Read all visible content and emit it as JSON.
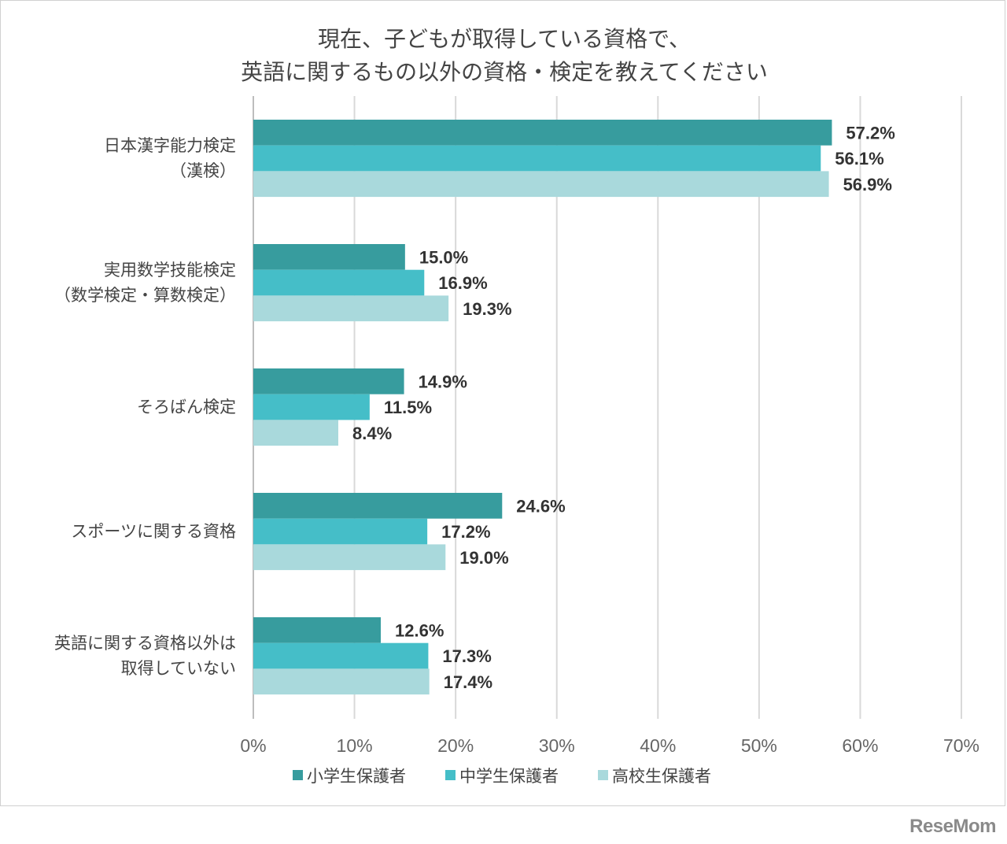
{
  "chart_data": {
    "type": "bar",
    "orientation": "horizontal",
    "title_lines": [
      "現在、子どもが取得している資格で、",
      "英語に関するもの以外の資格・検定を教えてください"
    ],
    "categories": [
      [
        "日本漢字能力検定",
        "（漢検）"
      ],
      [
        "実用数学技能検定",
        "（数学検定・算数検定）"
      ],
      [
        "そろばん検定"
      ],
      [
        "スポーツに関する資格"
      ],
      [
        "英語に関する資格以外は",
        "取得していない"
      ]
    ],
    "series": [
      {
        "name": "小学生保護者",
        "color": "#379c9e",
        "values": [
          57.2,
          15.0,
          14.9,
          24.6,
          12.6
        ]
      },
      {
        "name": "中学生保護者",
        "color": "#45bec8",
        "values": [
          56.1,
          16.9,
          11.5,
          17.2,
          17.3
        ]
      },
      {
        "name": "高校生保護者",
        "color": "#a9d9dc",
        "values": [
          56.9,
          19.3,
          8.4,
          19.0,
          17.4
        ]
      }
    ],
    "xlim": [
      0,
      70
    ],
    "xticks": [
      0,
      10,
      20,
      30,
      40,
      50,
      60,
      70
    ],
    "tick_suffix": "%",
    "value_suffix": "%",
    "grid": true,
    "legend_position": "bottom"
  },
  "brand": "ReseMom"
}
